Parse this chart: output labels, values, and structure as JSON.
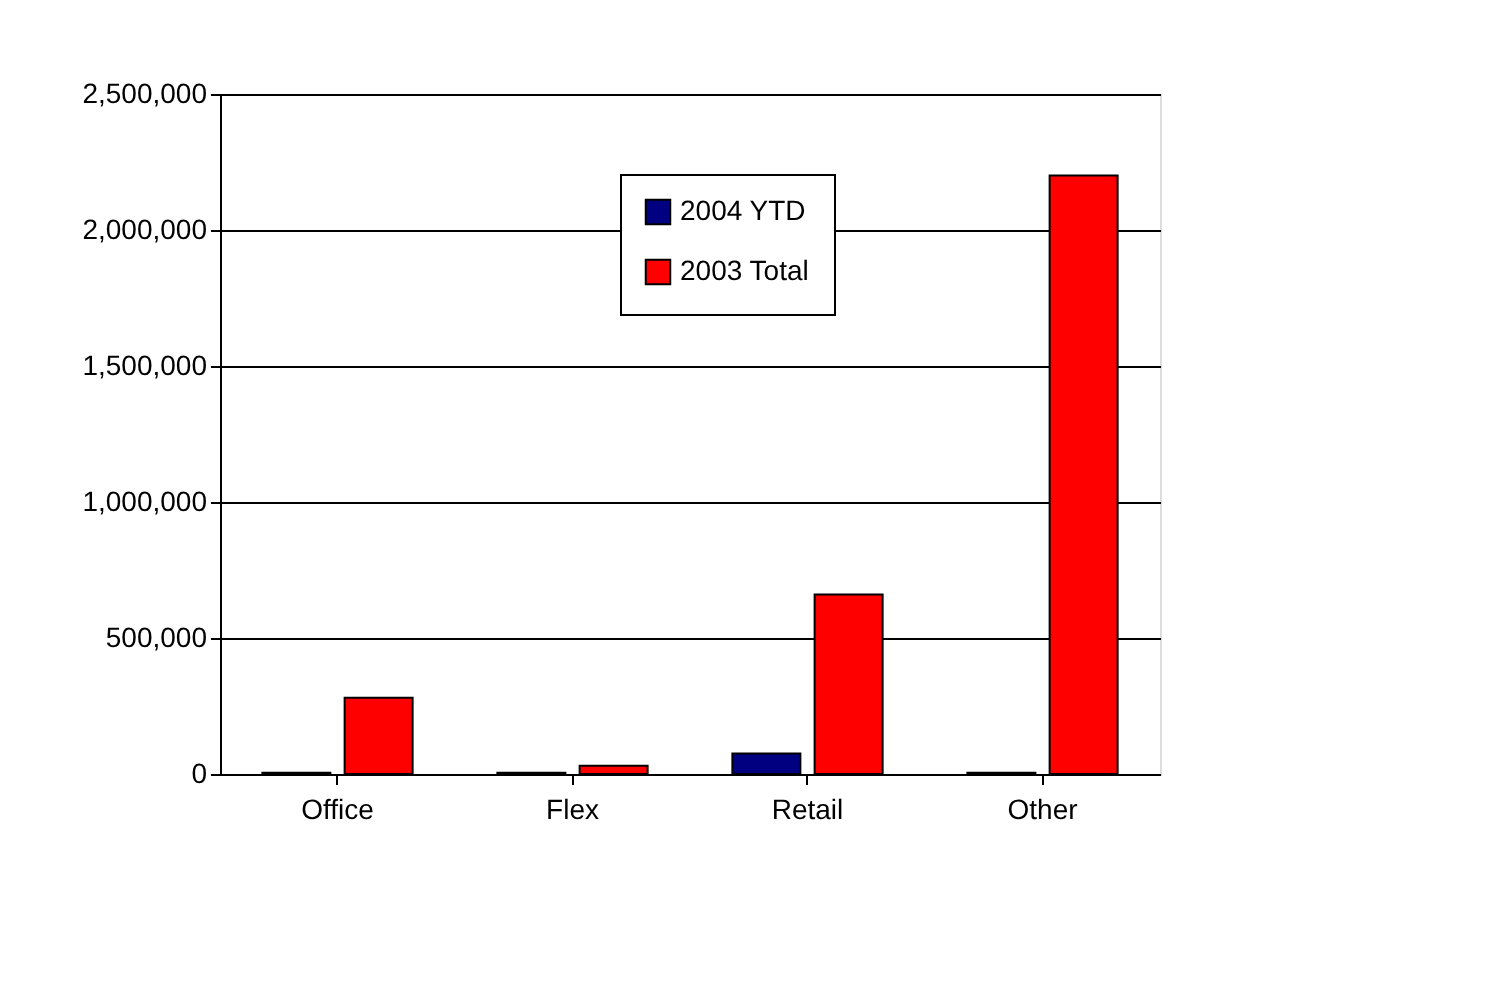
{
  "chart_data": {
    "type": "bar",
    "categories": [
      "Office",
      "Flex",
      "Retail",
      "Other"
    ],
    "series": [
      {
        "name": "2004 YTD",
        "color": "#000080",
        "values": [
          5000,
          5000,
          75000,
          5000
        ]
      },
      {
        "name": "2003 Total",
        "color": "#ff0000",
        "values": [
          280000,
          30000,
          660000,
          2200000
        ]
      }
    ],
    "ylim": [
      0,
      2500000
    ],
    "yticks": [
      0,
      {
        "value": 500000,
        "label": "500,000"
      },
      {
        "value": 1000000,
        "label": "1,000,000"
      },
      {
        "value": 1500000,
        "label": "1,500,000"
      },
      {
        "value": 2000000,
        "label": "2,000,000"
      },
      {
        "value": 2500000,
        "label": "2,500,000"
      }
    ],
    "grid": "y",
    "legend": "top"
  }
}
